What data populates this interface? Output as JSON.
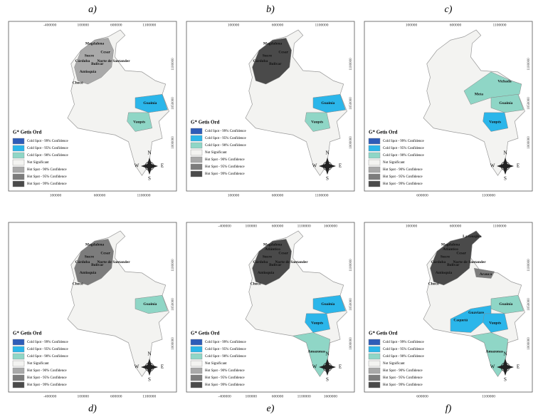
{
  "legend": {
    "title": "G* Getis Ord",
    "items": [
      {
        "label": "Cold Spot - 99% Confidence",
        "color": "#2e5cb8"
      },
      {
        "label": "Cold Spot - 95% Confidence",
        "color": "#2bb6ea"
      },
      {
        "label": "Cold Spot - 90% Confidence",
        "color": "#8fd6c6"
      },
      {
        "label": "Not Significant",
        "color": "#f3f3f1"
      },
      {
        "label": "Hot Spot - 90% Confidence",
        "color": "#a9a9a9"
      },
      {
        "label": "Hot Spot - 95% Confidence",
        "color": "#7c7c7c"
      },
      {
        "label": "Hot Spot - 99% Confidence",
        "color": "#4a4a4a"
      }
    ]
  },
  "compass": [
    "N",
    "S",
    "E",
    "W"
  ],
  "panels": [
    {
      "label": "a)",
      "top_ticks": [
        "-400000",
        "100000",
        "600000",
        "1100000"
      ],
      "bottom_ticks": [
        "100000",
        "600000",
        "1100000"
      ],
      "side_ticks": [
        "1100000",
        "1050000",
        "1000000"
      ],
      "regions": [
        "Magdalena",
        "Cesar",
        "Sucre",
        "Norte de Santander",
        "Córdoba",
        "Bolívar",
        "Antioquia",
        "Chocó",
        "Guainía",
        "Vaupés"
      ]
    },
    {
      "label": "b)",
      "top_ticks": [
        "100000",
        "600000",
        "1100000"
      ],
      "bottom_ticks": [
        "100000",
        "600000",
        "1100000"
      ],
      "side_ticks": [
        "1100000",
        "1050000",
        "1000000"
      ],
      "regions": [
        "Magdalena",
        "Cesar",
        "Sucre",
        "Córdoba",
        "Bolívar",
        "Guainía",
        "Vaupés"
      ]
    },
    {
      "label": "c)",
      "top_ticks": [
        "100000",
        "600000",
        "1100000"
      ],
      "bottom_ticks": [
        "600000",
        "1100000"
      ],
      "side_ticks": [
        "1100000",
        "1050000",
        "1000000"
      ],
      "regions": [
        "Vichada",
        "Meta",
        "Guainía",
        "Vaupés"
      ]
    },
    {
      "label": "d)",
      "top_ticks": [],
      "bottom_ticks": [
        "-400000",
        "100000",
        "600000",
        "1100000"
      ],
      "side_ticks": [
        "1100000",
        "1050000",
        "1000000"
      ],
      "regions": [
        "Magdalena",
        "Cesar",
        "Sucre",
        "Córdoba",
        "Bolívar",
        "Norte de Santander",
        "Antioquia",
        "Chocó",
        "Guainía"
      ]
    },
    {
      "label": "e)",
      "top_ticks": [
        "-400000",
        "100000",
        "600000",
        "1100000",
        "1600000"
      ],
      "bottom_ticks": [
        "-400000",
        "100000",
        "600000",
        "1100000",
        "1600000"
      ],
      "side_ticks": [
        "1100000",
        "1050000",
        "1000000"
      ],
      "regions": [
        "Magdalena",
        "Atlántico",
        "Cesar",
        "Sucre",
        "Córdoba",
        "Norte de Santander",
        "Bolívar",
        "Antioquia",
        "Chocó",
        "Guainía",
        "Vaupés",
        "Amazonas"
      ]
    },
    {
      "label": "f)",
      "top_ticks": [
        "100000",
        "600000",
        "1100000"
      ],
      "bottom_ticks": [
        "600000",
        "1100000"
      ],
      "side_ticks": [
        "1100000",
        "1050000",
        "1000000"
      ],
      "regions": [
        "La Guajira",
        "Magdalena",
        "Atlántico",
        "Cesar",
        "Sucre",
        "Córdoba",
        "Bolívar",
        "Norte de Santander",
        "Antioquia",
        "Chocó",
        "Arauca",
        "Guaviare",
        "Caquetá",
        "Vaupés",
        "Guainía",
        "Amazonas"
      ]
    }
  ]
}
